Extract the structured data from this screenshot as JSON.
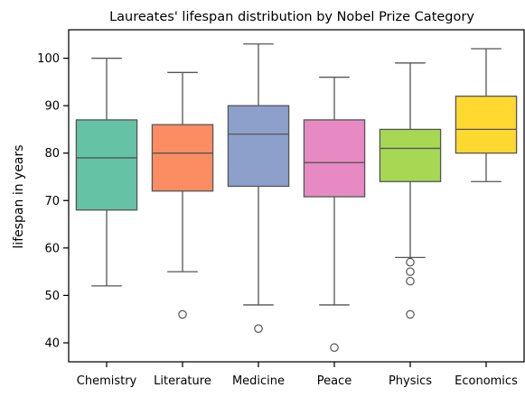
{
  "chart_data": {
    "type": "box",
    "title": "Laureates' lifespan distribution by Nobel Prize Category",
    "xlabel": "",
    "ylabel": "lifespan in years",
    "ylim": [
      36,
      106
    ],
    "yticks": [
      40,
      50,
      60,
      70,
      80,
      90,
      100
    ],
    "categories": [
      "Chemistry",
      "Literature",
      "Medicine",
      "Peace",
      "Physics",
      "Economics"
    ],
    "colors": [
      "#66c2a5",
      "#fc8d62",
      "#8da0cb",
      "#e78ac3",
      "#a6d854",
      "#ffd92f"
    ],
    "boxes": [
      {
        "whisker_low": 52,
        "q1": 68,
        "median": 79,
        "q3": 87,
        "whisker_high": 100,
        "outliers": []
      },
      {
        "whisker_low": 55,
        "q1": 72,
        "median": 80,
        "q3": 86,
        "whisker_high": 97,
        "outliers": [
          46
        ]
      },
      {
        "whisker_low": 48,
        "q1": 73,
        "median": 84,
        "q3": 90,
        "whisker_high": 103,
        "outliers": [
          43
        ]
      },
      {
        "whisker_low": 48,
        "q1": 70.8,
        "median": 78,
        "q3": 87,
        "whisker_high": 96,
        "outliers": [
          39
        ]
      },
      {
        "whisker_low": 58,
        "q1": 74,
        "median": 81,
        "q3": 85,
        "whisker_high": 99,
        "outliers": [
          57,
          55,
          53,
          46
        ]
      },
      {
        "whisker_low": 74,
        "q1": 80,
        "median": 85,
        "q3": 92,
        "whisker_high": 102,
        "outliers": []
      }
    ]
  }
}
